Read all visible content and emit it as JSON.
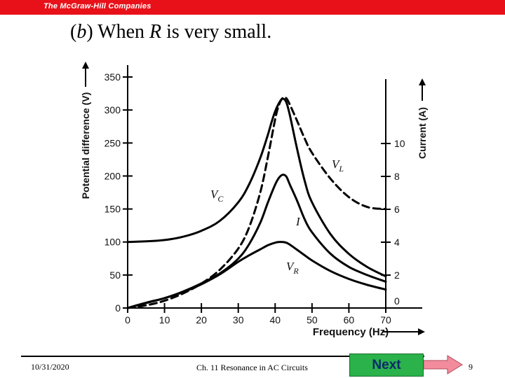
{
  "banner": {
    "logo_text": "The McGraw-Hill Companies",
    "color": "#e8111a"
  },
  "slide": {
    "title_prefix": "(",
    "title_letter": "b",
    "title_mid": ") When ",
    "title_var": "R",
    "title_suffix": " is very small."
  },
  "chart_data": {
    "type": "line",
    "xlabel": "Frequency (Hz)",
    "ylabel_left": "Potential difference (V)",
    "ylabel_right": "Current (A)",
    "xlim": [
      0,
      70
    ],
    "ylim_left": [
      0,
      350
    ],
    "ylim_right": [
      0,
      14
    ],
    "x_ticks": [
      0,
      10,
      20,
      30,
      40,
      50,
      60,
      70
    ],
    "y_ticks_left": [
      0,
      50,
      100,
      150,
      200,
      250,
      300,
      350
    ],
    "y_ticks_right": [
      0,
      2,
      4,
      6,
      8,
      10
    ],
    "grid": false,
    "series": [
      {
        "name": "V_C",
        "label_main": "V",
        "label_sub": "C",
        "axis": "left",
        "style": "solid",
        "x": [
          0,
          5,
          10,
          15,
          20,
          25,
          30,
          33,
          36,
          38,
          39,
          40,
          41,
          42,
          43,
          44,
          46,
          48,
          50,
          55,
          60,
          65,
          70
        ],
        "y": [
          100,
          101,
          103,
          108,
          117,
          132,
          160,
          188,
          228,
          262,
          281,
          298,
          310,
          317,
          312,
          292,
          240,
          193,
          160,
          112,
          82,
          62,
          48
        ]
      },
      {
        "name": "V_L",
        "label_main": "V",
        "label_sub": "L",
        "axis": "left",
        "style": "dashed",
        "x": [
          0,
          5,
          10,
          15,
          20,
          25,
          30,
          33,
          36,
          38,
          40,
          41,
          42,
          43,
          44,
          46,
          48,
          50,
          55,
          60,
          65,
          70
        ],
        "y": [
          0,
          4,
          11,
          22,
          37,
          58,
          90,
          123,
          176,
          228,
          286,
          307,
          318,
          318,
          308,
          283,
          257,
          235,
          196,
          168,
          153,
          150
        ]
      },
      {
        "name": "I",
        "label_main": "I",
        "label_sub": "",
        "axis": "right",
        "style": "solid",
        "x": [
          0,
          5,
          10,
          15,
          20,
          25,
          30,
          33,
          36,
          38,
          40,
          41,
          42,
          43,
          44,
          46,
          48,
          50,
          55,
          60,
          65,
          70
        ],
        "y": [
          0,
          0.3,
          0.6,
          1.0,
          1.5,
          2.1,
          3.0,
          3.9,
          5.2,
          6.4,
          7.5,
          7.9,
          8.1,
          8.0,
          7.5,
          6.5,
          5.4,
          4.6,
          3.3,
          2.5,
          2.0,
          1.6
        ]
      },
      {
        "name": "V_R",
        "label_main": "V",
        "label_sub": "R",
        "axis": "left",
        "style": "solid",
        "x": [
          0,
          5,
          10,
          15,
          20,
          25,
          30,
          33,
          36,
          38,
          40,
          41,
          42,
          43,
          44,
          46,
          48,
          50,
          55,
          60,
          65,
          70
        ],
        "y": [
          0,
          8,
          15,
          24,
          36,
          51,
          70,
          80,
          89,
          95,
          99,
          100,
          100,
          99,
          96,
          88,
          80,
          72,
          56,
          44,
          35,
          28
        ]
      }
    ]
  },
  "footer": {
    "date": "10/31/2020",
    "course": "Ch. 11 Resonance in AC Circuits",
    "next_label": "Next",
    "page_number": "9",
    "next_button_color": "#2bb24a",
    "arrow_color": "#f28c9c"
  }
}
